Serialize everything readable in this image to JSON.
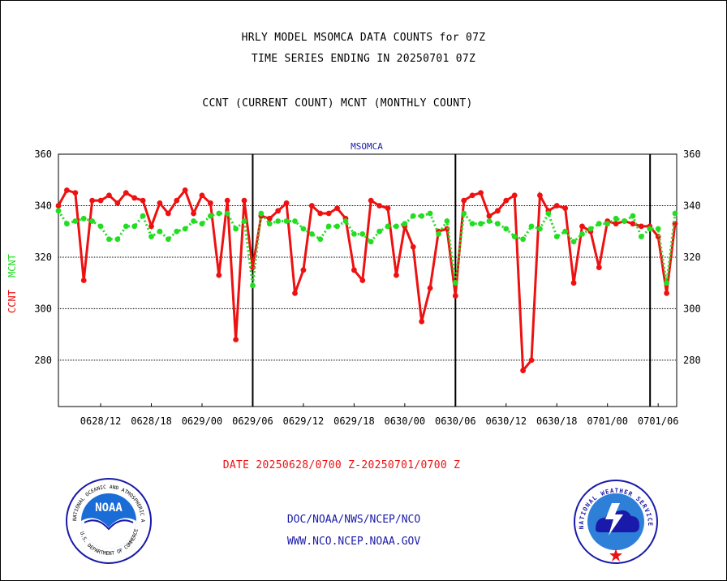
{
  "header": {
    "line1": "HRLY MODEL MSOMCA DATA COUNTS for 07Z",
    "line2": "TIME SERIES ENDING IN 20250701 07Z",
    "line3": "CCNT (CURRENT COUNT) MCNT (MONTHLY COUNT)"
  },
  "chart_data": {
    "type": "line",
    "title": "MSOMCA",
    "ylabel_left": "CCNT",
    "ylabel_right": "MCNT",
    "ylim": [
      262,
      360
    ],
    "yticks": [
      280,
      300,
      320,
      340,
      360
    ],
    "grid": true,
    "x_tick_labels": [
      "0628/12",
      "0628/18",
      "0629/00",
      "0629/06",
      "0629/12",
      "0629/18",
      "0630/00",
      "0630/06",
      "0630/12",
      "0630/18",
      "0701/00",
      "0701/06"
    ],
    "vertical_markers": [
      "0629/06",
      "0630/06",
      "0701/06"
    ],
    "series": [
      {
        "name": "CCNT",
        "color": "#ee1111",
        "values": [
          340,
          346,
          345,
          311,
          342,
          342,
          344,
          341,
          345,
          343,
          342,
          332,
          341,
          337,
          342,
          346,
          337,
          344,
          341,
          313,
          342,
          288,
          342,
          316,
          336,
          335,
          338,
          341,
          306,
          315,
          340,
          337,
          337,
          339,
          335,
          315,
          311,
          342,
          340,
          339,
          313,
          332,
          324,
          295,
          308,
          330,
          331,
          305,
          342,
          344,
          345,
          336,
          338,
          342,
          344,
          276,
          280,
          344,
          338,
          340,
          339,
          310,
          332,
          330,
          316,
          334,
          333,
          334,
          333,
          332,
          332,
          328,
          306,
          333
        ]
      },
      {
        "name": "MCNT",
        "color": "#22dd22",
        "values": [
          338,
          333,
          334,
          335,
          334,
          332,
          327,
          327,
          332,
          332,
          336,
          328,
          330,
          327,
          330,
          331,
          334,
          333,
          336,
          337,
          337,
          331,
          334,
          309,
          337,
          333,
          334,
          334,
          334,
          331,
          329,
          327,
          332,
          332,
          334,
          329,
          329,
          326,
          330,
          332,
          332,
          333,
          336,
          336,
          337,
          329,
          334,
          310,
          337,
          333,
          333,
          334,
          333,
          331,
          328,
          327,
          332,
          331,
          337,
          328,
          330,
          326,
          329,
          331,
          333,
          333,
          335,
          334,
          336,
          328,
          331,
          331,
          310,
          337
        ]
      }
    ],
    "xlabel": "DATE 20250628/0700 Z-20250701/0700 Z"
  },
  "footer": {
    "line1": "DOC/NOAA/NWS/NCEP/NCO",
    "line2": "WWW.NCO.NCEP.NOAA.GOV"
  },
  "logos": {
    "noaa_text": "NOAA",
    "noaa_ring_text": "NATIONAL OCEANIC AND ATMOSPHERIC ADMINISTRATION",
    "noaa_bottom_text": "U.S. DEPARTMENT OF COMMERCE",
    "nws_ring_text": "NATIONAL WEATHER SERVICE"
  }
}
